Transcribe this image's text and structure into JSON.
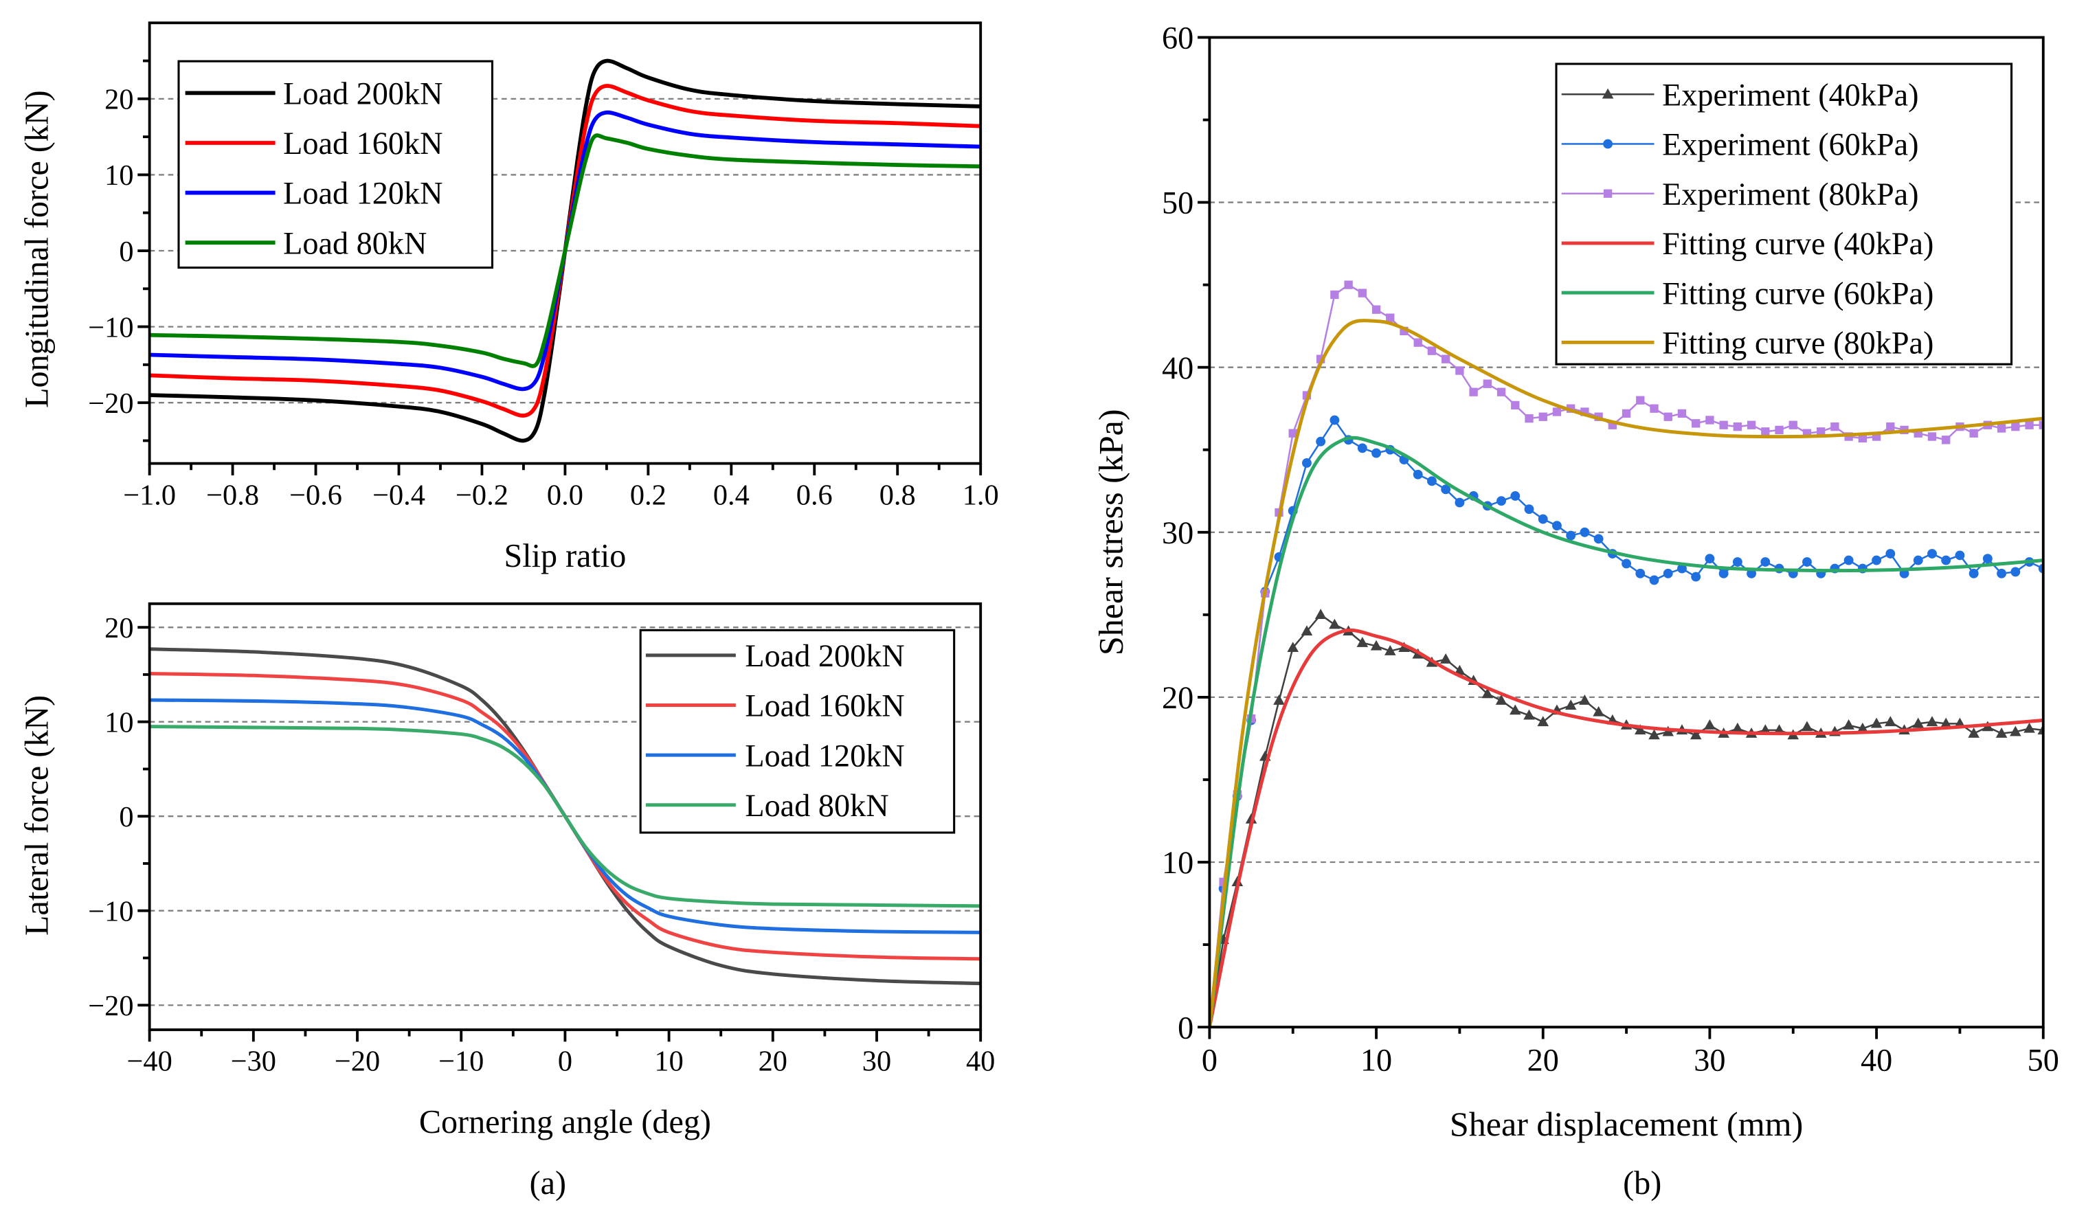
{
  "chart_data": [
    {
      "id": "a_top",
      "type": "line",
      "xlabel": "Slip ratio",
      "ylabel": "Longitudinal force (kN)",
      "xlim": [
        -1.0,
        1.0
      ],
      "ylim": [
        -28,
        30
      ],
      "xticks": [
        -1.0,
        -0.8,
        -0.6,
        -0.4,
        -0.2,
        0.0,
        0.2,
        0.4,
        0.6,
        0.8,
        1.0
      ],
      "xtick_labels": [
        "−1.0",
        "−0.8",
        "−0.6",
        "−0.4",
        "−0.2",
        "0.0",
        "0.2",
        "0.4",
        "0.6",
        "0.8",
        "1.0"
      ],
      "yticks": [
        -20,
        -10,
        0,
        10,
        20
      ],
      "ytick_labels": [
        "−20",
        "−10",
        "0",
        "10",
        "20"
      ],
      "grid": "horizontal-dashed",
      "legend_position": "top-left",
      "symmetry": "odd",
      "x": [
        0,
        0.03,
        0.05,
        0.07,
        0.1,
        0.15,
        0.2,
        0.3,
        0.4,
        0.6,
        0.8,
        1.0
      ],
      "series": [
        {
          "name": "Load 200kN",
          "color": "#000000",
          "values": [
            0,
            12,
            19,
            23.5,
            25,
            24,
            22.8,
            21.2,
            20.5,
            19.7,
            19.3,
            19.0
          ]
        },
        {
          "name": "Load 160kN",
          "color": "#ff0000",
          "values": [
            0,
            10.4,
            16.5,
            20.4,
            21.7,
            20.8,
            19.8,
            18.4,
            17.8,
            17.1,
            16.8,
            16.4
          ]
        },
        {
          "name": "Load 120kN",
          "color": "#0000ff",
          "values": [
            0,
            8.7,
            13.8,
            17.1,
            18.2,
            17.5,
            16.6,
            15.4,
            14.9,
            14.3,
            14.0,
            13.7
          ]
        },
        {
          "name": "Load 80kN",
          "color": "#008000",
          "values": [
            0,
            7.5,
            12,
            15,
            14.8,
            14.2,
            13.4,
            12.5,
            12.0,
            11.6,
            11.3,
            11.1
          ]
        }
      ]
    },
    {
      "id": "a_bottom",
      "type": "line",
      "xlabel": "Cornering angle (deg)",
      "ylabel": "Lateral force (kN)",
      "xlim": [
        -40,
        40
      ],
      "ylim": [
        -22.6,
        22.5
      ],
      "xticks": [
        -40,
        -30,
        -20,
        -10,
        0,
        10,
        20,
        30,
        40
      ],
      "xtick_labels": [
        "−40",
        "−30",
        "−20",
        "−10",
        "0",
        "10",
        "20",
        "30",
        "40"
      ],
      "yticks": [
        -20,
        -10,
        0,
        10,
        20
      ],
      "ytick_labels": [
        "−20",
        "−10",
        "0",
        "10",
        "20"
      ],
      "grid": "horizontal-dashed",
      "legend_position": "top-right",
      "symmetry": "odd",
      "x": [
        0,
        2,
        4,
        6,
        8,
        10,
        15,
        20,
        30,
        40
      ],
      "series": [
        {
          "name": "Load 200kN",
          "color": "#4a4a4a",
          "values": [
            0,
            -3.5,
            -7,
            -10,
            -12.3,
            -13.8,
            -15.8,
            -16.7,
            -17.4,
            -17.7
          ]
        },
        {
          "name": "Load 160kN",
          "color": "#f04444",
          "values": [
            0,
            -3.5,
            -6.8,
            -9.3,
            -11,
            -12.3,
            -13.8,
            -14.4,
            -14.9,
            -15.1
          ]
        },
        {
          "name": "Load 120kN",
          "color": "#1f6fe0",
          "values": [
            0,
            -3.4,
            -6.3,
            -8.4,
            -9.7,
            -10.6,
            -11.5,
            -11.9,
            -12.2,
            -12.3
          ]
        },
        {
          "name": "Load 80kN",
          "color": "#3aaa6a",
          "values": [
            0,
            -3.3,
            -5.7,
            -7.3,
            -8.2,
            -8.7,
            -9.1,
            -9.3,
            -9.4,
            -9.5
          ]
        }
      ]
    },
    {
      "id": "b",
      "type": "line",
      "xlabel": "Shear displacement (mm)",
      "ylabel": "Shear stress (kPa)",
      "xlim": [
        0,
        50
      ],
      "ylim": [
        0,
        60
      ],
      "xticks": [
        0,
        10,
        20,
        30,
        40,
        50
      ],
      "xtick_labels": [
        "0",
        "10",
        "20",
        "30",
        "40",
        "50"
      ],
      "yticks": [
        0,
        10,
        20,
        30,
        40,
        50,
        60
      ],
      "ytick_labels": [
        "0",
        "10",
        "20",
        "30",
        "40",
        "50",
        "60"
      ],
      "grid": "horizontal-dashed",
      "legend_position": "top-right",
      "experiment_x_range": [
        0,
        50
      ],
      "fit_x": [
        0,
        2,
        4,
        6,
        8,
        10,
        12,
        15,
        20,
        25,
        30,
        35,
        40,
        45,
        50
      ],
      "series": [
        {
          "name": "Experiment (40kPa)",
          "kind": "marker-line",
          "marker": "triangle",
          "color": "#404040",
          "values": [
            0,
            5.3,
            8.8,
            12.6,
            16.4,
            19.8,
            23,
            24,
            25,
            24.4,
            24,
            23.3,
            23.1,
            22.8,
            23,
            22.6,
            22.1,
            22.3,
            21.6,
            21,
            20.2,
            19.8,
            19.2,
            18.9,
            18.5,
            19.2,
            19.5,
            19.8,
            19.1,
            18.6,
            18.3,
            18,
            17.7,
            17.9,
            18,
            17.7,
            18.3,
            17.8,
            18.1,
            17.8,
            18,
            18,
            17.7,
            18.2,
            17.8,
            17.9,
            18.3,
            18.1,
            18.4,
            18.5,
            18,
            18.4,
            18.5,
            18.4,
            18.4,
            17.8,
            18.2,
            17.8,
            17.9,
            18.1,
            18
          ]
        },
        {
          "name": "Experiment (60kPa)",
          "kind": "marker-line",
          "marker": "circle",
          "color": "#1f6fdf",
          "values": [
            0,
            8.4,
            14,
            18.6,
            26.4,
            28.5,
            31.3,
            34.2,
            35.5,
            36.8,
            35.6,
            35.1,
            34.8,
            35,
            34.4,
            33.5,
            33.1,
            32.6,
            31.8,
            32.2,
            31.6,
            31.9,
            32.2,
            31.4,
            30.8,
            30.4,
            29.8,
            30,
            29.6,
            28.7,
            28.1,
            27.5,
            27.1,
            27.5,
            27.8,
            27.3,
            28.4,
            27.5,
            28.2,
            27.5,
            28.2,
            27.8,
            27.5,
            28.2,
            27.5,
            27.8,
            28.3,
            27.8,
            28.3,
            28.7,
            27.5,
            28.3,
            28.7,
            28.3,
            28.6,
            27.5,
            28.4,
            27.5,
            27.6,
            28.2,
            27.8
          ]
        },
        {
          "name": "Experiment (80kPa)",
          "kind": "marker-line",
          "marker": "square",
          "color": "#b57fe3",
          "values": [
            0,
            8.8,
            14.1,
            18.7,
            26.3,
            31.2,
            36,
            38.3,
            40.5,
            44.4,
            45,
            44.5,
            43.5,
            43,
            42.2,
            41.5,
            41,
            40.5,
            39.8,
            38.5,
            39,
            38.5,
            37.7,
            36.9,
            37,
            37.3,
            37.5,
            37.3,
            37,
            36.5,
            37.2,
            38,
            37.5,
            37,
            37.2,
            36.6,
            36.8,
            36.5,
            36.4,
            36.5,
            36.1,
            36.2,
            36.5,
            36,
            36.1,
            36.4,
            35.8,
            35.7,
            35.8,
            36.4,
            36.2,
            36,
            35.8,
            35.6,
            36.4,
            36,
            36.5,
            36.3,
            36.4,
            36.5,
            36.5
          ]
        },
        {
          "name": "Fitting curve (40kPa)",
          "kind": "fit",
          "color": "#e83a3a",
          "values": [
            0,
            10,
            18,
            22.5,
            24,
            23.7,
            23,
            21.3,
            19.3,
            18.3,
            17.9,
            17.8,
            17.9,
            18.2,
            18.6
          ]
        },
        {
          "name": "Fitting curve (60kPa)",
          "kind": "fit",
          "color": "#2ea866",
          "values": [
            0,
            16,
            27,
            33.5,
            35.6,
            35.4,
            34.5,
            32.5,
            30,
            28.6,
            27.9,
            27.7,
            27.7,
            27.9,
            28.3
          ]
        },
        {
          "name": "Fitting curve (80kPa)",
          "kind": "fit",
          "color": "#c8960a",
          "values": [
            0,
            18,
            30,
            38.5,
            42.3,
            42.8,
            42.2,
            40.5,
            38,
            36.5,
            35.9,
            35.8,
            36,
            36.4,
            36.9
          ]
        }
      ]
    }
  ],
  "panel_labels": {
    "a": "(a)",
    "b": "(b)"
  }
}
